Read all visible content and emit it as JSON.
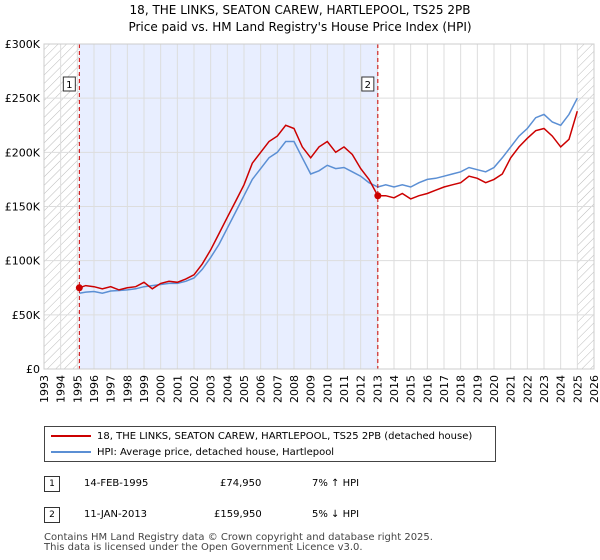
{
  "title": "18, THE LINKS, SEATON CAREW, HARTLEPOOL, TS25 2PB",
  "subtitle": "Price paid vs. HM Land Registry's House Price Index (HPI)",
  "colors": {
    "property": "#cc0000",
    "hpi": "#5b8fd4",
    "shade": "#e8eeff",
    "grid": "#dddddd"
  },
  "legend": {
    "property": "18, THE LINKS, SEATON CAREW, HARTLEPOOL, TS25 2PB (detached house)",
    "hpi": "HPI: Average price, detached house, Hartlepool"
  },
  "sales": [
    {
      "num": "1",
      "date": "14-FEB-1995",
      "price": "£74,950",
      "hpi_delta": "7% ↑ HPI"
    },
    {
      "num": "2",
      "date": "11-JAN-2013",
      "price": "£159,950",
      "hpi_delta": "5% ↓ HPI"
    }
  ],
  "footer": {
    "line1": "Contains HM Land Registry data © Crown copyright and database right 2025.",
    "line2": "This data is licensed under the Open Government Licence v3.0."
  },
  "chart_data": {
    "type": "line",
    "xlim": [
      1993,
      2026
    ],
    "ylim": [
      0,
      300000
    ],
    "yticks": [
      {
        "v": 0,
        "label": "£0"
      },
      {
        "v": 50000,
        "label": "£50K"
      },
      {
        "v": 100000,
        "label": "£100K"
      },
      {
        "v": 150000,
        "label": "£150K"
      },
      {
        "v": 200000,
        "label": "£200K"
      },
      {
        "v": 250000,
        "label": "£250K"
      },
      {
        "v": 300000,
        "label": "£300K"
      }
    ],
    "xticks": [
      "1993",
      "1994",
      "1995",
      "1996",
      "1997",
      "1998",
      "1999",
      "2000",
      "2001",
      "2002",
      "2003",
      "2004",
      "2005",
      "2006",
      "2007",
      "2008",
      "2009",
      "2010",
      "2011",
      "2012",
      "2013",
      "2014",
      "2015",
      "2016",
      "2017",
      "2018",
      "2019",
      "2020",
      "2021",
      "2022",
      "2023",
      "2024",
      "2025",
      "2026"
    ],
    "shaded_range": [
      1995.12,
      2013.03
    ],
    "hatched_before": 1995.12,
    "hatched_after": 2025.0,
    "markers": [
      {
        "label": "1",
        "x": 1995.12,
        "y": 74950
      },
      {
        "label": "2",
        "x": 2013.03,
        "y": 159950
      }
    ],
    "series": [
      {
        "name": "property",
        "points": [
          [
            1995.12,
            74950
          ],
          [
            1995.5,
            77000
          ],
          [
            1996,
            76000
          ],
          [
            1996.5,
            74000
          ],
          [
            1997,
            76000
          ],
          [
            1997.5,
            73000
          ],
          [
            1998,
            75000
          ],
          [
            1998.5,
            76000
          ],
          [
            1999,
            80000
          ],
          [
            1999.5,
            74000
          ],
          [
            2000,
            79000
          ],
          [
            2000.5,
            81000
          ],
          [
            2001,
            80000
          ],
          [
            2001.5,
            83000
          ],
          [
            2002,
            87000
          ],
          [
            2002.5,
            97000
          ],
          [
            2003,
            110000
          ],
          [
            2003.5,
            125000
          ],
          [
            2004,
            140000
          ],
          [
            2004.5,
            155000
          ],
          [
            2005,
            170000
          ],
          [
            2005.5,
            190000
          ],
          [
            2006,
            200000
          ],
          [
            2006.5,
            210000
          ],
          [
            2007,
            215000
          ],
          [
            2007.5,
            225000
          ],
          [
            2008,
            222000
          ],
          [
            2008.5,
            205000
          ],
          [
            2009,
            195000
          ],
          [
            2009.5,
            205000
          ],
          [
            2010,
            210000
          ],
          [
            2010.5,
            200000
          ],
          [
            2011,
            205000
          ],
          [
            2011.5,
            198000
          ],
          [
            2012,
            185000
          ],
          [
            2012.5,
            175000
          ],
          [
            2013.03,
            159950
          ],
          [
            2013.5,
            160000
          ],
          [
            2014,
            158000
          ],
          [
            2014.5,
            162000
          ],
          [
            2015,
            157000
          ],
          [
            2015.5,
            160000
          ],
          [
            2016,
            162000
          ],
          [
            2016.5,
            165000
          ],
          [
            2017,
            168000
          ],
          [
            2017.5,
            170000
          ],
          [
            2018,
            172000
          ],
          [
            2018.5,
            178000
          ],
          [
            2019,
            176000
          ],
          [
            2019.5,
            172000
          ],
          [
            2020,
            175000
          ],
          [
            2020.5,
            180000
          ],
          [
            2021,
            195000
          ],
          [
            2021.5,
            205000
          ],
          [
            2022,
            213000
          ],
          [
            2022.5,
            220000
          ],
          [
            2023,
            222000
          ],
          [
            2023.5,
            215000
          ],
          [
            2024,
            205000
          ],
          [
            2024.5,
            212000
          ],
          [
            2025,
            238000
          ]
        ]
      },
      {
        "name": "hpi",
        "points": [
          [
            1995.12,
            70000
          ],
          [
            1995.5,
            71000
          ],
          [
            1996,
            71500
          ],
          [
            1996.5,
            70000
          ],
          [
            1997,
            72000
          ],
          [
            1997.5,
            72500
          ],
          [
            1998,
            73000
          ],
          [
            1998.5,
            74000
          ],
          [
            1999,
            76000
          ],
          [
            1999.5,
            77000
          ],
          [
            2000,
            78000
          ],
          [
            2000.5,
            79000
          ],
          [
            2001,
            79000
          ],
          [
            2001.5,
            81000
          ],
          [
            2002,
            84000
          ],
          [
            2002.5,
            92000
          ],
          [
            2003,
            103000
          ],
          [
            2003.5,
            115000
          ],
          [
            2004,
            130000
          ],
          [
            2004.5,
            145000
          ],
          [
            2005,
            160000
          ],
          [
            2005.5,
            175000
          ],
          [
            2006,
            185000
          ],
          [
            2006.5,
            195000
          ],
          [
            2007,
            200000
          ],
          [
            2007.5,
            210000
          ],
          [
            2008,
            210000
          ],
          [
            2008.5,
            195000
          ],
          [
            2009,
            180000
          ],
          [
            2009.5,
            183000
          ],
          [
            2010,
            188000
          ],
          [
            2010.5,
            185000
          ],
          [
            2011,
            186000
          ],
          [
            2011.5,
            182000
          ],
          [
            2012,
            178000
          ],
          [
            2012.5,
            172000
          ],
          [
            2013.03,
            168000
          ],
          [
            2013.5,
            170000
          ],
          [
            2014,
            168000
          ],
          [
            2014.5,
            170000
          ],
          [
            2015,
            168000
          ],
          [
            2015.5,
            172000
          ],
          [
            2016,
            175000
          ],
          [
            2016.5,
            176000
          ],
          [
            2017,
            178000
          ],
          [
            2017.5,
            180000
          ],
          [
            2018,
            182000
          ],
          [
            2018.5,
            186000
          ],
          [
            2019,
            184000
          ],
          [
            2019.5,
            182000
          ],
          [
            2020,
            186000
          ],
          [
            2020.5,
            195000
          ],
          [
            2021,
            205000
          ],
          [
            2021.5,
            215000
          ],
          [
            2022,
            222000
          ],
          [
            2022.5,
            232000
          ],
          [
            2023,
            235000
          ],
          [
            2023.5,
            228000
          ],
          [
            2024,
            225000
          ],
          [
            2024.5,
            235000
          ],
          [
            2025,
            250000
          ]
        ]
      }
    ]
  }
}
